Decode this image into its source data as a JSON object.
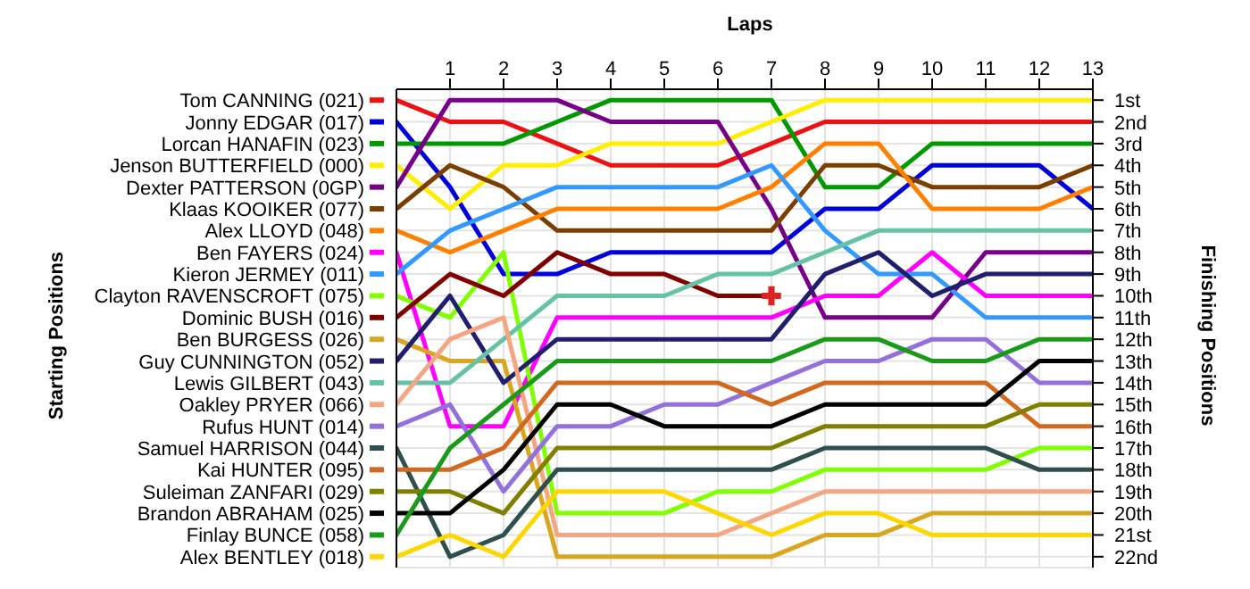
{
  "chart_data": {
    "type": "line",
    "xlabel": "Laps",
    "legend_title": "Starting Positions",
    "ylabel": "Finishing Positions",
    "x": [
      0,
      1,
      2,
      3,
      4,
      5,
      6,
      7,
      8,
      9,
      10,
      11,
      12,
      13
    ],
    "xlim": [
      0,
      13
    ],
    "xticks": [
      1,
      2,
      3,
      4,
      5,
      6,
      7,
      8,
      9,
      10,
      11,
      12,
      13
    ],
    "legend": "left",
    "ylim": [
      22.5,
      0.5
    ],
    "yticks": [
      {
        "value": 1,
        "label": "1st"
      },
      {
        "value": 2,
        "label": "2nd"
      },
      {
        "value": 3,
        "label": "3rd"
      },
      {
        "value": 4,
        "label": "4th"
      },
      {
        "value": 5,
        "label": "5th"
      },
      {
        "value": 6,
        "label": "6th"
      },
      {
        "value": 7,
        "label": "7th"
      },
      {
        "value": 8,
        "label": "8th"
      },
      {
        "value": 9,
        "label": "9th"
      },
      {
        "value": 10,
        "label": "10th"
      },
      {
        "value": 11,
        "label": "11th"
      },
      {
        "value": 12,
        "label": "12th"
      },
      {
        "value": 13,
        "label": "13th"
      },
      {
        "value": 14,
        "label": "14th"
      },
      {
        "value": 15,
        "label": "15th"
      },
      {
        "value": 16,
        "label": "16th"
      },
      {
        "value": 17,
        "label": "17th"
      },
      {
        "value": 18,
        "label": "18th"
      },
      {
        "value": 19,
        "label": "19th"
      },
      {
        "value": 20,
        "label": "20th"
      },
      {
        "value": 21,
        "label": "21st"
      },
      {
        "value": 22,
        "label": "22nd"
      }
    ],
    "grid": true,
    "series": [
      {
        "name": "Tom CANNING (021)",
        "color": "#ee1111",
        "values": [
          1,
          2,
          2,
          3,
          4,
          4,
          4,
          3,
          2,
          2,
          2,
          2,
          2,
          2
        ]
      },
      {
        "name": "Jonny EDGAR (017)",
        "color": "#0000dd",
        "values": [
          2,
          5,
          9,
          9,
          8,
          8,
          8,
          8,
          6,
          6,
          4,
          4,
          4,
          6
        ]
      },
      {
        "name": "Lorcan HANAFIN (023)",
        "color": "#009900",
        "values": [
          3,
          3,
          3,
          2,
          1,
          1,
          1,
          1,
          5,
          5,
          3,
          3,
          3,
          3
        ]
      },
      {
        "name": "Jenson BUTTERFIELD (000)",
        "color": "#ffee00",
        "values": [
          4,
          6,
          4,
          4,
          3,
          3,
          3,
          2,
          1,
          1,
          1,
          1,
          1,
          1
        ]
      },
      {
        "name": "Dexter PATTERSON (0GP)",
        "color": "#770088",
        "values": [
          5,
          1,
          1,
          1,
          2,
          2,
          2,
          6,
          11,
          11,
          11,
          8,
          8,
          8
        ]
      },
      {
        "name": "Klaas KOOIKER (077)",
        "color": "#7a3f00",
        "values": [
          6,
          4,
          5,
          7,
          7,
          7,
          7,
          7,
          4,
          4,
          5,
          5,
          5,
          4
        ]
      },
      {
        "name": "Alex LLOYD (048)",
        "color": "#ff8000",
        "values": [
          7,
          8,
          7,
          6,
          6,
          6,
          6,
          5,
          3,
          3,
          6,
          6,
          6,
          5
        ]
      },
      {
        "name": "Ben FAYERS (024)",
        "color": "#ff00ff",
        "values": [
          8,
          16,
          16,
          11,
          11,
          11,
          11,
          11,
          10,
          10,
          8,
          10,
          10,
          10
        ]
      },
      {
        "name": "Kieron JERMEY (011)",
        "color": "#3399ff",
        "values": [
          9,
          7,
          6,
          5,
          5,
          5,
          5,
          4,
          7,
          9,
          9,
          11,
          11,
          11
        ]
      },
      {
        "name": "Clayton RAVENSCROFT (075)",
        "color": "#80ff00",
        "values": [
          10,
          11,
          8,
          20,
          20,
          20,
          19,
          19,
          18,
          18,
          18,
          18,
          17,
          17
        ]
      },
      {
        "name": "Dominic BUSH (016)",
        "color": "#800000",
        "values": [
          11,
          9,
          10,
          8,
          9,
          9,
          10,
          10,
          null,
          null,
          null,
          null,
          null,
          null
        ]
      },
      {
        "name": "Ben BURGESS (026)",
        "color": "#daa520",
        "values": [
          12,
          13,
          13,
          22,
          22,
          22,
          22,
          22,
          21,
          21,
          20,
          20,
          20,
          20
        ]
      },
      {
        "name": "Guy CUNNINGTON (052)",
        "color": "#1f1f6e",
        "values": [
          13,
          10,
          14,
          12,
          12,
          12,
          12,
          12,
          9,
          8,
          10,
          9,
          9,
          9
        ]
      },
      {
        "name": "Lewis GILBERT (043)",
        "color": "#66c2a5",
        "values": [
          14,
          14,
          12,
          10,
          10,
          10,
          9,
          9,
          8,
          7,
          7,
          7,
          7,
          7
        ]
      },
      {
        "name": "Oakley PRYER (066)",
        "color": "#f4a582",
        "values": [
          15,
          12,
          11,
          21,
          21,
          21,
          21,
          20,
          19,
          19,
          19,
          19,
          19,
          19
        ]
      },
      {
        "name": "Rufus HUNT (014)",
        "color": "#9370db",
        "values": [
          16,
          15,
          19,
          16,
          16,
          15,
          15,
          14,
          13,
          13,
          12,
          12,
          14,
          14
        ]
      },
      {
        "name": "Samuel HARRISON (044)",
        "color": "#2f4f4f",
        "values": [
          17,
          22,
          21,
          18,
          18,
          18,
          18,
          18,
          17,
          17,
          17,
          17,
          18,
          18
        ]
      },
      {
        "name": "Kai HUNTER (095)",
        "color": "#d2691e",
        "values": [
          18,
          18,
          17,
          14,
          14,
          14,
          14,
          15,
          14,
          14,
          14,
          14,
          16,
          16
        ]
      },
      {
        "name": "Suleiman ZANFARI (029)",
        "color": "#808000",
        "values": [
          19,
          19,
          20,
          17,
          17,
          17,
          17,
          17,
          16,
          16,
          16,
          16,
          15,
          15
        ]
      },
      {
        "name": "Brandon ABRAHAM (025)",
        "color": "#000000",
        "values": [
          20,
          20,
          18,
          15,
          15,
          16,
          16,
          16,
          15,
          15,
          15,
          15,
          13,
          13
        ]
      },
      {
        "name": "Finlay BUNCE (058)",
        "color": "#1a9a1a",
        "values": [
          21,
          17,
          15,
          13,
          13,
          13,
          13,
          13,
          12,
          12,
          13,
          13,
          12,
          12
        ]
      },
      {
        "name": "Alex BENTLEY (018)",
        "color": "#ffd700",
        "values": [
          22,
          21,
          22,
          19,
          19,
          19,
          20,
          21,
          20,
          20,
          21,
          21,
          21,
          21
        ]
      },
      {
        "type": "scatter",
        "marker": "cross",
        "color": "#dd2222",
        "x": [
          7
        ],
        "values": [
          10
        ]
      }
    ]
  }
}
